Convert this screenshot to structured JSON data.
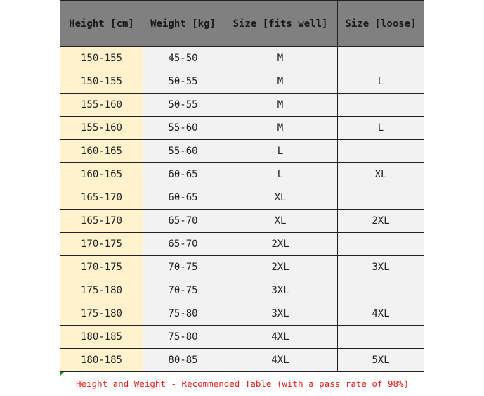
{
  "headers": [
    "Height [cm]",
    "Weight [kg]",
    "Size [fits well]",
    "Size [loose]"
  ],
  "rows": [
    [
      "150-155",
      "45-50",
      "M",
      ""
    ],
    [
      "150-155",
      "50-55",
      "M",
      "L"
    ],
    [
      "155-160",
      "50-55",
      "M",
      ""
    ],
    [
      "155-160",
      "55-60",
      "M",
      "L"
    ],
    [
      "160-165",
      "55-60",
      "L",
      ""
    ],
    [
      "160-165",
      "60-65",
      "L",
      "XL"
    ],
    [
      "165-170",
      "60-65",
      "XL",
      ""
    ],
    [
      "165-170",
      "65-70",
      "XL",
      "2XL"
    ],
    [
      "170-175",
      "65-70",
      "2XL",
      ""
    ],
    [
      "170-175",
      "70-75",
      "2XL",
      "3XL"
    ],
    [
      "175-180",
      "70-75",
      "3XL",
      ""
    ],
    [
      "175-180",
      "75-80",
      "3XL",
      "4XL"
    ],
    [
      "180-185",
      "75-80",
      "4XL",
      ""
    ],
    [
      "180-185",
      "80-85",
      "4XL",
      "5XL"
    ]
  ],
  "footer": "Height and Weight - Recommended Table (with a pass rate of 98%)",
  "colors": {
    "header_bg": "#808080",
    "height_col_bg": "#fff2cc",
    "cell_bg": "#f2f2f2",
    "footer_text": "#e0201c"
  }
}
